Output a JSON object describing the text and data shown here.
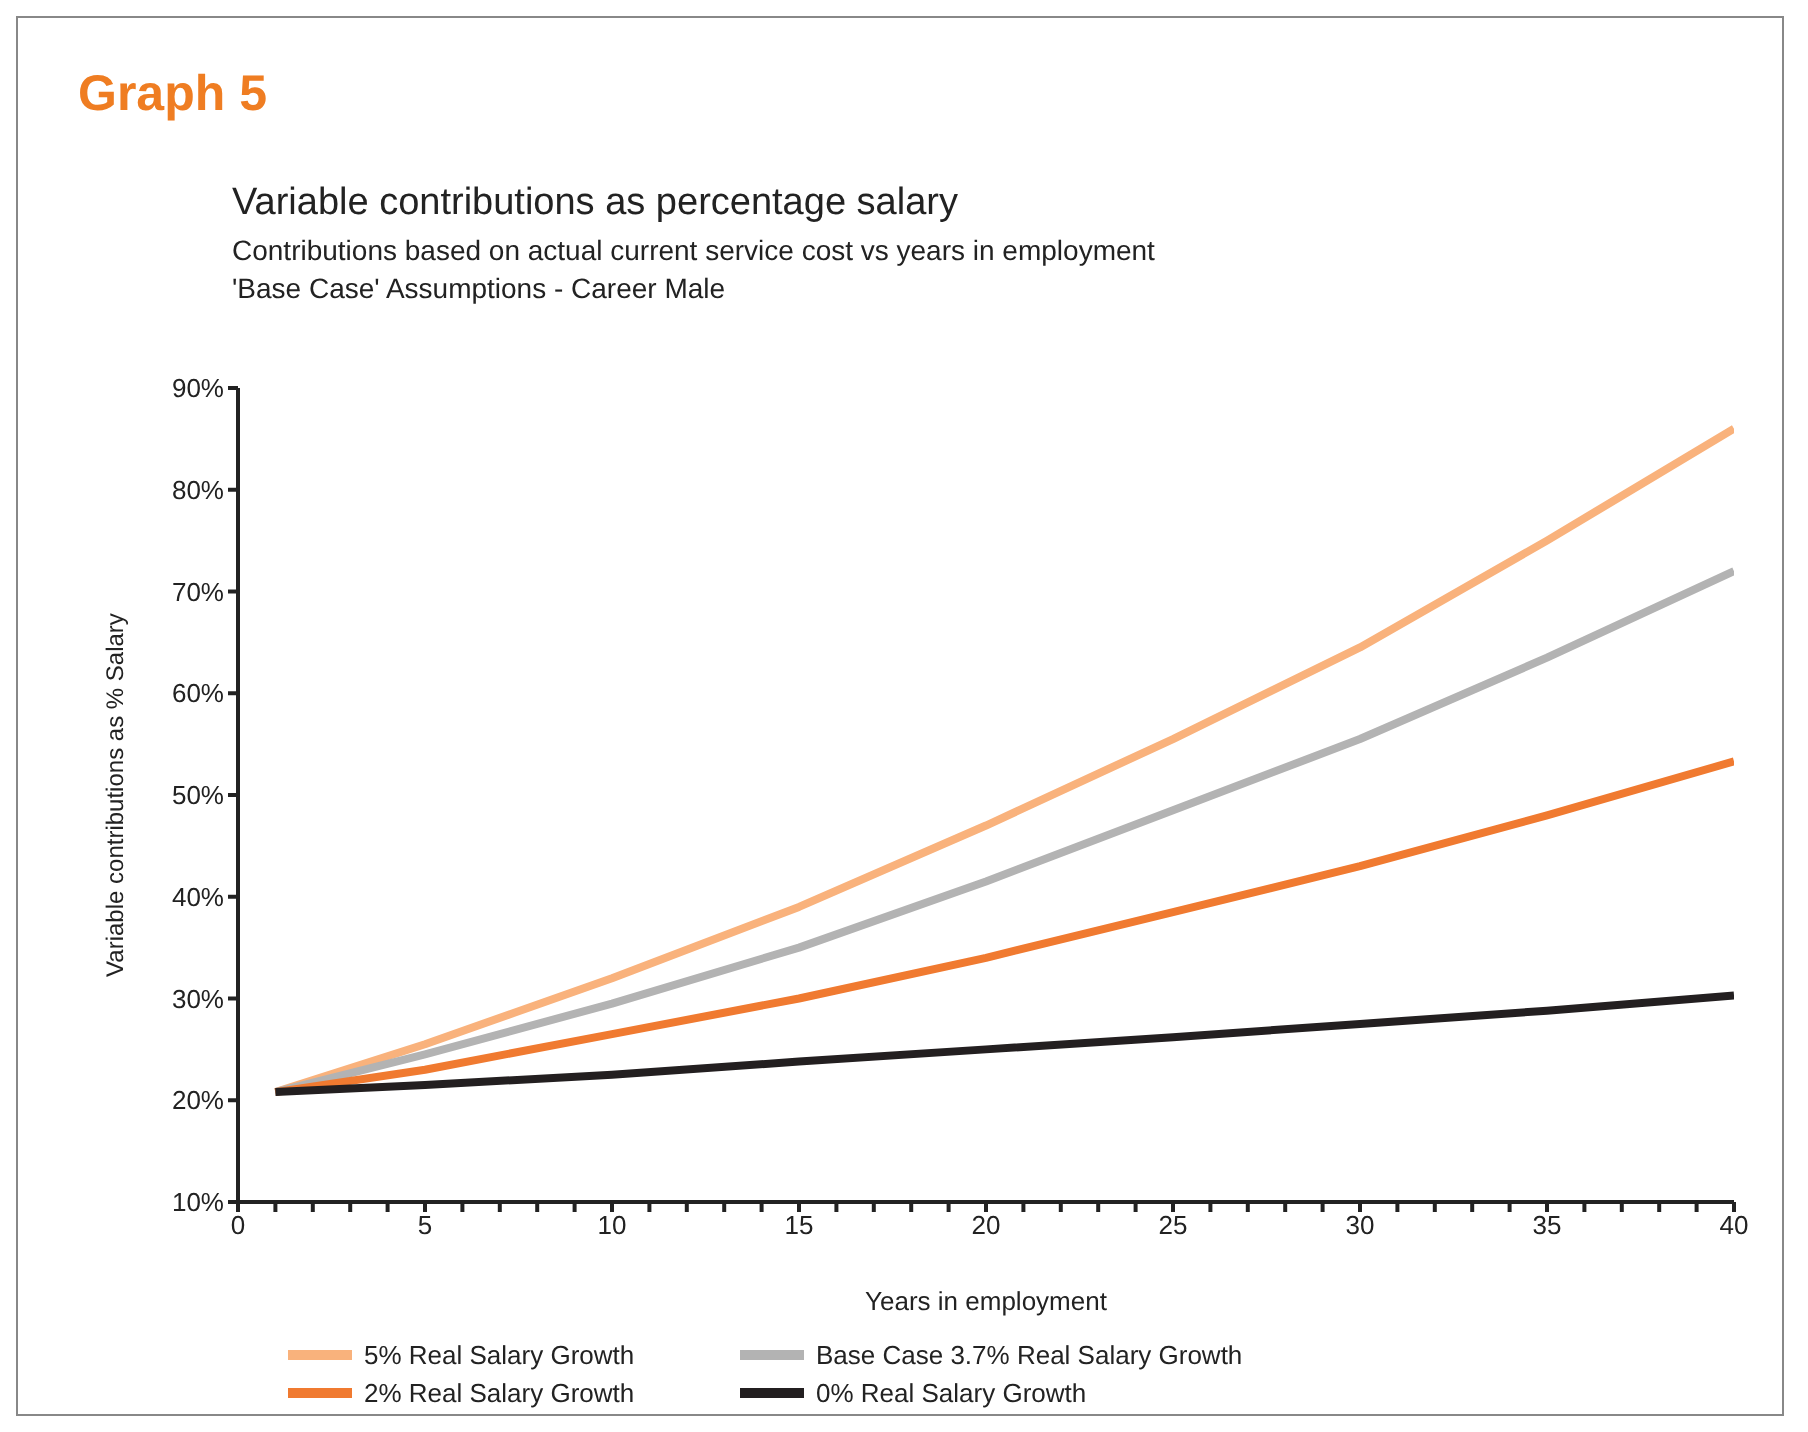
{
  "chart_data": {
    "type": "line",
    "title": "Variable contributions as percentage salary",
    "subtitle": "Contributions based on actual current service cost vs years in employment",
    "annotations": [
      "Graph 5",
      "'Base Case' Assumptions - Career Male"
    ],
    "xlabel": "Years in employment",
    "ylabel": "Variable contributions as % Salary",
    "x": [
      1,
      5,
      10,
      15,
      20,
      25,
      30,
      35,
      40
    ],
    "series": [
      {
        "name": "5% Real Salary Growth",
        "color": "#f9b27c",
        "values": [
          20.8,
          25.5,
          32,
          39,
          47,
          55.5,
          64.5,
          75,
          86
        ]
      },
      {
        "name": "Base Case 3.7% Real Salary Growth",
        "color": "#b3b3b3",
        "values": [
          20.8,
          24.5,
          29.5,
          35,
          41.5,
          48.5,
          55.5,
          63.5,
          72
        ]
      },
      {
        "name": "2% Real Salary Growth",
        "color": "#f07a30",
        "values": [
          20.8,
          23,
          26.5,
          30,
          34,
          38.5,
          43,
          48,
          53.3
        ]
      },
      {
        "name": "0% Real Salary Growth",
        "color": "#231f20",
        "values": [
          20.8,
          21.5,
          22.5,
          23.8,
          25,
          26.2,
          27.5,
          28.8,
          30.3
        ]
      }
    ],
    "xlim": [
      0,
      40
    ],
    "ylim": [
      10,
      90
    ],
    "xticks": [
      0,
      {
        "value": 1,
        "label": null
      },
      {
        "value": 2,
        "label": null
      },
      {
        "value": 3,
        "label": null
      },
      {
        "value": 4,
        "label": null
      },
      5,
      {
        "value": 6,
        "label": null
      },
      {
        "value": 7,
        "label": null
      },
      {
        "value": 8,
        "label": null
      },
      {
        "value": 9,
        "label": null
      },
      10,
      {
        "value": 11,
        "label": null
      },
      {
        "value": 12,
        "label": null
      },
      {
        "value": 13,
        "label": null
      },
      {
        "value": 14,
        "label": null
      },
      15,
      {
        "value": 16,
        "label": null
      },
      {
        "value": 17,
        "label": null
      },
      {
        "value": 18,
        "label": null
      },
      {
        "value": 19,
        "label": null
      },
      20,
      {
        "value": 21,
        "label": null
      },
      {
        "value": 22,
        "label": null
      },
      {
        "value": 23,
        "label": null
      },
      {
        "value": 24,
        "label": null
      },
      25,
      {
        "value": 26,
        "label": null
      },
      {
        "value": 27,
        "label": null
      },
      {
        "value": 28,
        "label": null
      },
      {
        "value": 29,
        "label": null
      },
      30,
      {
        "value": 31,
        "label": null
      },
      {
        "value": 32,
        "label": null
      },
      {
        "value": 33,
        "label": null
      },
      {
        "value": 34,
        "label": null
      },
      35,
      {
        "value": 36,
        "label": null
      },
      {
        "value": 37,
        "label": null
      },
      {
        "value": 38,
        "label": null
      },
      {
        "value": 39,
        "label": null
      },
      40
    ],
    "yticks": [
      {
        "value": 10,
        "label": "10%"
      },
      {
        "value": 20,
        "label": "20%"
      },
      {
        "value": 30,
        "label": "30%"
      },
      {
        "value": 40,
        "label": "40%"
      },
      {
        "value": 50,
        "label": "50%"
      },
      {
        "value": 60,
        "label": "60%"
      },
      {
        "value": 70,
        "label": "70%"
      },
      {
        "value": 80,
        "label": "80%"
      },
      {
        "value": 90,
        "label": "90%"
      }
    ],
    "grid": false,
    "legend": "bottom",
    "marker": "none",
    "line_style": "solid"
  }
}
